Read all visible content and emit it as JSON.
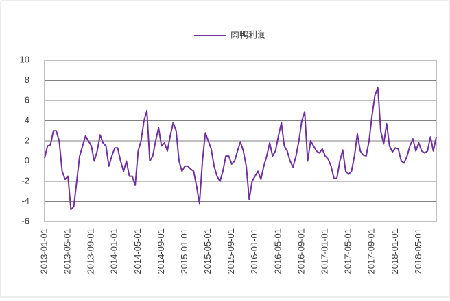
{
  "chart_data": {
    "type": "line",
    "categories": [
      "2013-01-01",
      null,
      null,
      null,
      null,
      null,
      null,
      null,
      "2013-05-01",
      null,
      null,
      null,
      null,
      null,
      null,
      null,
      "2013-09-01",
      null,
      null,
      null,
      null,
      null,
      null,
      null,
      "2014-01-01",
      null,
      null,
      null,
      null,
      null,
      null,
      null,
      "2014-05-01",
      null,
      null,
      null,
      null,
      null,
      null,
      null,
      "2014-09-01",
      null,
      null,
      null,
      null,
      null,
      null,
      null,
      "2015-01-01",
      null,
      null,
      null,
      null,
      null,
      null,
      null,
      "2015-05-01",
      null,
      null,
      null,
      null,
      null,
      null,
      null,
      "2015-09-01",
      null,
      null,
      null,
      null,
      null,
      null,
      null,
      "2016-01-01",
      null,
      null,
      null,
      null,
      null,
      null,
      null,
      "2016-05-01",
      null,
      null,
      null,
      null,
      null,
      null,
      null,
      "2016-09-01",
      null,
      null,
      null,
      null,
      null,
      null,
      null,
      "2017-01-01",
      null,
      null,
      null,
      null,
      null,
      null,
      null,
      "2017-05-01",
      null,
      null,
      null,
      null,
      null,
      null,
      null,
      "2017-09-01",
      null,
      null,
      null,
      null,
      null,
      null,
      null,
      "2018-01-01",
      null,
      null,
      null,
      null,
      null,
      null,
      null,
      "2018-05-01",
      null,
      null,
      null,
      null,
      null,
      null
    ],
    "series": [
      {
        "name": "肉鸭利润",
        "color": "#7030a0",
        "values": [
          0.3,
          1.5,
          1.6,
          3.0,
          3.0,
          2.0,
          -1.0,
          -1.8,
          -1.5,
          -4.8,
          -4.5,
          -2.0,
          0.5,
          1.5,
          2.5,
          2.0,
          1.5,
          0,
          1.0,
          2.6,
          1.8,
          1.5,
          -0.5,
          0.5,
          1.3,
          1.3,
          0,
          -1.0,
          0,
          -1.5,
          -1.5,
          -2.4,
          1.0,
          2.0,
          4.0,
          5.0,
          0,
          0.5,
          2.0,
          3.3,
          1.5,
          1.8,
          1.0,
          2.5,
          3.8,
          3.0,
          0,
          -1.0,
          -0.5,
          -0.5,
          -0.8,
          -1.0,
          -2.5,
          -4.2,
          0,
          2.8,
          2.0,
          1.2,
          -0.5,
          -1.5,
          -2.0,
          -1.0,
          0.5,
          0.5,
          -0.3,
          0,
          1.0,
          1.9,
          1.0,
          -0.5,
          -3.8,
          -2.0,
          -1.5,
          -1.0,
          -1.8,
          -0.5,
          0.5,
          1.8,
          0.5,
          1.0,
          2.5,
          3.8,
          1.5,
          1.0,
          0,
          -0.6,
          0.5,
          2.0,
          4.0,
          4.9,
          0,
          2.0,
          1.5,
          1.0,
          0.8,
          1.2,
          0.5,
          0.2,
          -0.5,
          -1.7,
          -1.7,
          0,
          1.1,
          -1.0,
          -1.3,
          -1.0,
          0.5,
          2.7,
          1.0,
          0.6,
          0.5,
          2.0,
          4.5,
          6.5,
          7.3,
          3.0,
          1.7,
          3.7,
          1.5,
          0.9,
          1.3,
          1.2,
          0,
          -0.2,
          0.5,
          1.5,
          2.2,
          1.0,
          1.8,
          1.0,
          0.8,
          1.0,
          2.4,
          1.0,
          2.4
        ]
      }
    ],
    "ylim": [
      -6,
      10
    ],
    "yticks": [
      -6,
      -4,
      -2,
      0,
      2,
      4,
      6,
      8,
      10
    ],
    "grid": true
  }
}
